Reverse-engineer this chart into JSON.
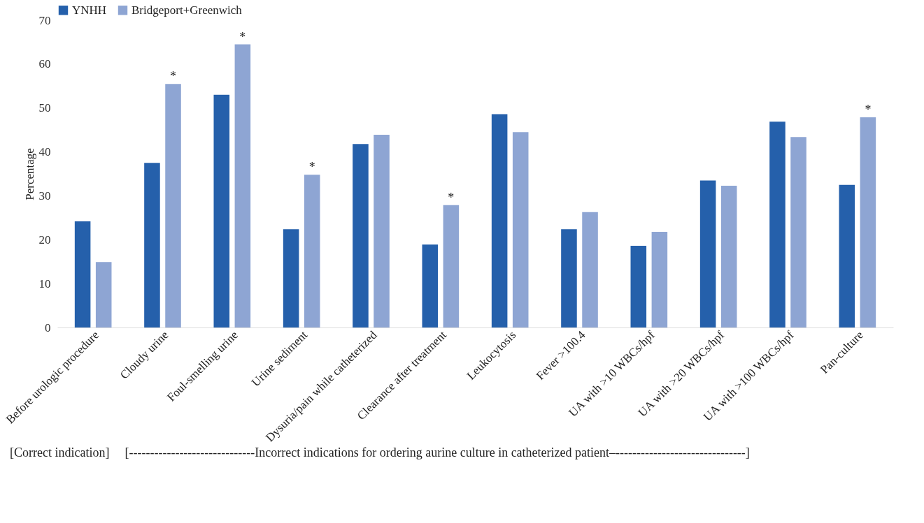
{
  "chart_data": {
    "type": "bar",
    "ylabel": "Percentage",
    "categories": [
      "Before urologic procedure",
      "Cloudy urine",
      "Foul-smelling urine",
      "Urine sediment",
      "Dysuria/pain while catheterized",
      "Clearance after treatment",
      "Leukocytosis",
      "Fever >100.4",
      "UA with >10 WBCs/hpf",
      "UA with >20 WBCs/hpf",
      "UA with >100 WBCs/hpf",
      "Pan-culture"
    ],
    "series": [
      {
        "name": "YNHH",
        "color": "#2560ab",
        "values": [
          24.2,
          37.5,
          53.0,
          22.4,
          41.8,
          18.9,
          48.6,
          22.4,
          18.6,
          33.5,
          46.9,
          32.5
        ]
      },
      {
        "name": "Bridgeport+Greenwich",
        "color": "#8ea5d3",
        "values": [
          14.9,
          55.5,
          64.5,
          34.8,
          43.9,
          27.9,
          44.5,
          26.3,
          21.8,
          32.3,
          43.4,
          47.9
        ]
      }
    ],
    "ylim": [
      0,
      70
    ],
    "yticks": [
      0,
      10,
      20,
      30,
      40,
      50,
      60,
      70
    ],
    "grid": false,
    "legend": "top",
    "annotations": [
      {
        "text": "*",
        "x": "Cloudy urine",
        "y": 55.5
      },
      {
        "text": "*",
        "x": "Foul-smelling urine",
        "y": 64.5
      },
      {
        "text": "*",
        "x": "Urine sediment",
        "y": 34.8
      },
      {
        "text": "*",
        "x": "Clearance after treatment",
        "y": 27.9
      },
      {
        "text": "*",
        "x": "Pan-culture",
        "y": 47.9
      },
      "[Correct indication]",
      "[------------------------------Incorrect indications for ordering aurine culture in catheterized patient–-------------------------------]"
    ]
  }
}
